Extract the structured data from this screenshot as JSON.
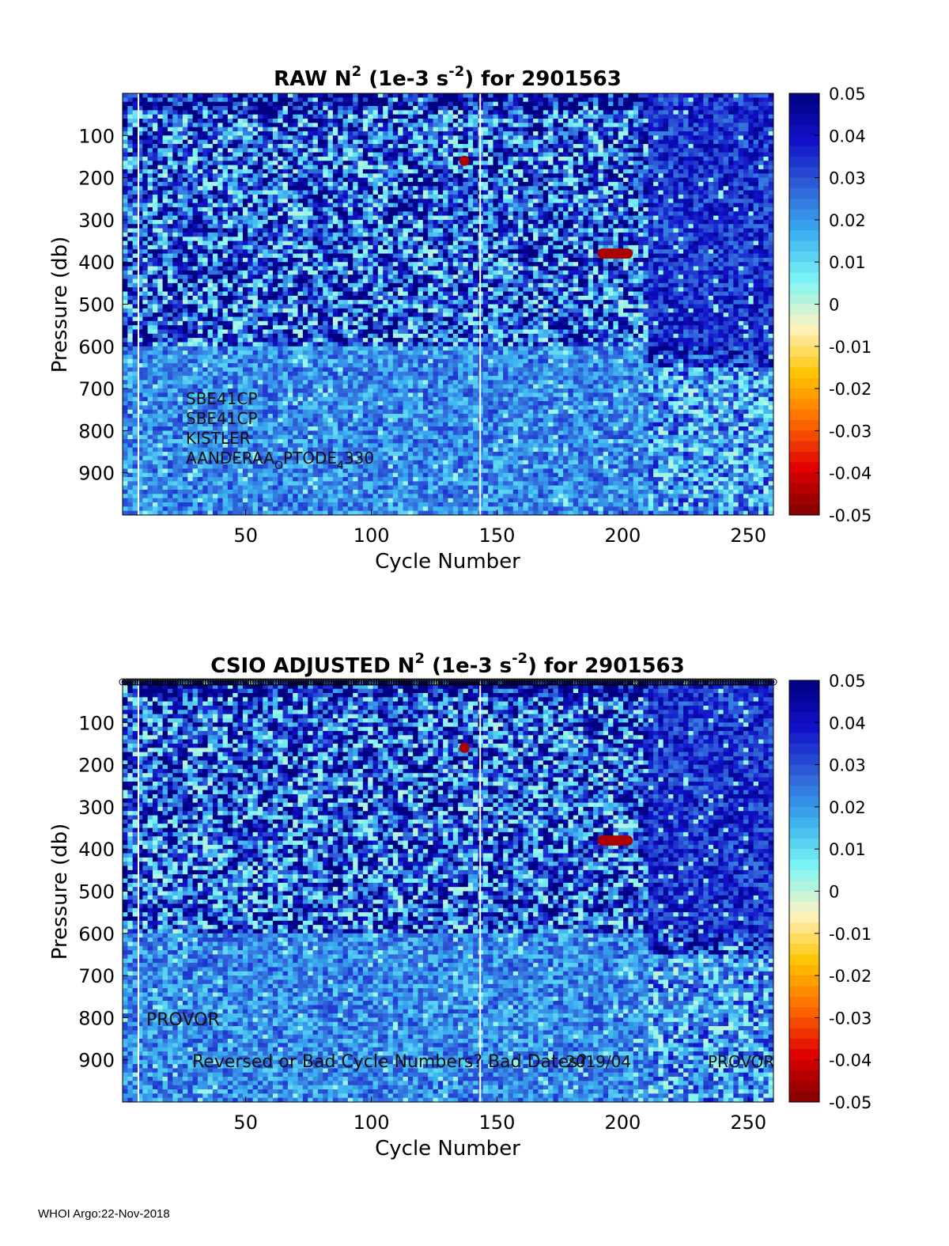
{
  "footer": "WHOI Argo:22-Nov-2018",
  "colors": {
    "colormap": [
      "#800000",
      "#e00000",
      "#ff6a00",
      "#ffc400",
      "#fff3c0",
      "#7ef5f5",
      "#3bb0f0",
      "#3060d8",
      "#1010c8",
      "#000080"
    ]
  },
  "chart_data": [
    {
      "type": "heatmap",
      "title_parts": {
        "prefix": "RAW N",
        "sup1": "2",
        "mid": " (1e-3 s",
        "sup2": "-2",
        "suffix": ") for 2901563"
      },
      "xlabel": "Cycle Number",
      "ylabel": "Pressure (db)",
      "xlim": [
        1,
        260
      ],
      "ylim": [
        0,
        1000
      ],
      "xticks": [
        50,
        100,
        150,
        200,
        250
      ],
      "yticks": [
        100,
        200,
        300,
        400,
        500,
        600,
        700,
        800,
        900
      ],
      "colorbar": {
        "ticks": [
          "0.05",
          "0.04",
          "0.03",
          "0.02",
          "0.01",
          "0",
          "-0.01",
          "-0.02",
          "-0.03",
          "-0.04",
          "-0.05"
        ],
        "range": [
          -0.05,
          0.05
        ]
      },
      "regions": [
        {
          "label": "cycles 1-210, 0-600 db",
          "mean_value": 0.03
        },
        {
          "label": "cycles 1-210, 600-1000 db",
          "mean_value": 0.022
        },
        {
          "label": "cycles 211-260, 0-1000 db",
          "mean_value": 0.035
        }
      ],
      "negative_patches": [
        {
          "cycle": 137,
          "pressure": 160,
          "value": -0.045
        },
        {
          "cycle_range": [
            190,
            204
          ],
          "pressure": 380,
          "value": -0.045
        }
      ],
      "annotations": [
        "SBE41CP",
        "SBE41CP",
        "KISTLER",
        "AANDERAA_OPTODE_4330"
      ],
      "sensor_lines": [
        "SBE41CP",
        "SBE41CP",
        "KISTLER"
      ],
      "optode": {
        "main": "AANDERAA",
        "sub1": "O",
        "mid": "PTODE",
        "sub2": "4",
        "end": "330"
      }
    },
    {
      "type": "heatmap",
      "title_parts": {
        "prefix": "CSIO  ADJUSTED N",
        "sup1": "2",
        "mid": " (1e-3 s",
        "sup2": "-2",
        "suffix": ") for 2901563"
      },
      "xlabel": "Cycle Number",
      "ylabel": "Pressure (db)",
      "xlim": [
        1,
        260
      ],
      "ylim": [
        0,
        1000
      ],
      "xticks": [
        50,
        100,
        150,
        200,
        250
      ],
      "yticks": [
        100,
        200,
        300,
        400,
        500,
        600,
        700,
        800,
        900
      ],
      "colorbar": {
        "ticks": [
          "0.05",
          "0.04",
          "0.03",
          "0.02",
          "0.01",
          "0",
          "-0.01",
          "-0.02",
          "-0.03",
          "-0.04",
          "-0.05"
        ],
        "range": [
          -0.05,
          0.05
        ]
      },
      "regions": [
        {
          "label": "cycles 1-210, 0-600 db",
          "mean_value": 0.03
        },
        {
          "label": "cycles 1-210, 600-1000 db",
          "mean_value": 0.022
        },
        {
          "label": "cycles 211-260, 0-1000 db",
          "mean_value": 0.035
        }
      ],
      "negative_patches": [
        {
          "cycle": 137,
          "pressure": 160,
          "value": -0.045
        },
        {
          "cycle_range": [
            190,
            204
          ],
          "pressure": 380,
          "value": -0.045
        }
      ],
      "top_markers": "open circles along the top edge, every cycle",
      "annotations": [
        "PROVOR",
        "Reversed or Bad Cycle Numbers? Bad Dates?",
        "2019/04",
        "PROVOR"
      ],
      "text_labels": {
        "provor_left": "PROVOR",
        "warning": "Reversed or Bad Cycle Numbers? Bad Dates?",
        "date": "2019/04",
        "provor_right": "PROVOR"
      }
    }
  ]
}
